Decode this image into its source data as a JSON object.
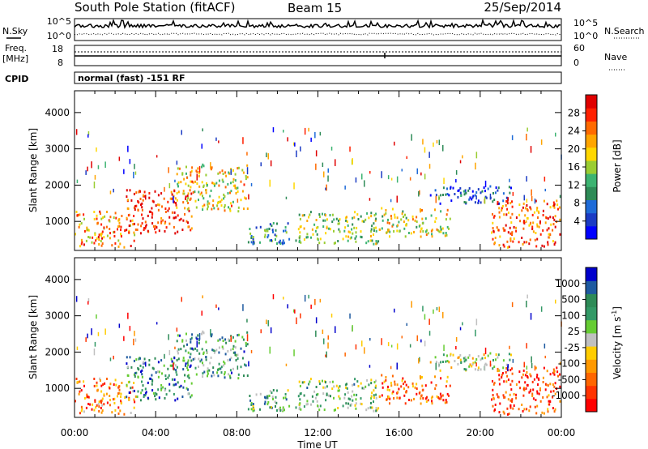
{
  "header": {
    "station": "South Pole Station (fitACF)",
    "beam": "Beam 15",
    "date": "25/Sep/2014"
  },
  "status_panels": {
    "noise_left_label": "N.Sky",
    "noise_right_label": "N.Search",
    "noise_left_ticks": [
      "10^5",
      "10^0"
    ],
    "noise_right_ticks": [
      "10^5",
      "10^0"
    ],
    "freq_label_1": "Freq.",
    "freq_label_2": "[MHz]",
    "freq_ticks": [
      "18",
      "8"
    ],
    "nave_label": "Nave",
    "nave_ticks": [
      "60",
      "0"
    ],
    "cpid_label": "CPID",
    "cpid_value": "normal (fast) -151 RF"
  },
  "chart_data": [
    {
      "type": "heatmap",
      "name": "power",
      "ylabel": "Slant Range [km]",
      "yticks": [
        "1000",
        "2000",
        "3000",
        "4000"
      ],
      "ylim": [
        200,
        4600
      ],
      "xlim": [
        0,
        24
      ],
      "colorbar_label": "Power [dB]",
      "colorbar_ticks": [
        "28",
        "24",
        "20",
        "16",
        "12",
        "8",
        "4"
      ],
      "colorbar_colors": [
        "#0000ff",
        "#1b3bc4",
        "#1e6bd8",
        "#2e8b57",
        "#3cb371",
        "#9acd32",
        "#ffd700",
        "#ffa500",
        "#ff6a00",
        "#ff2000",
        "#e00000"
      ],
      "echo_regions": [
        {
          "t0": 0.0,
          "t1": 3.0,
          "r0": 300,
          "r1": 1300,
          "level": 0.7
        },
        {
          "t0": 2.5,
          "t1": 5.8,
          "r0": 700,
          "r1": 1900,
          "level": 0.9
        },
        {
          "t0": 5.0,
          "t1": 8.5,
          "r0": 1300,
          "r1": 2600,
          "level": 0.6
        },
        {
          "t0": 8.5,
          "t1": 11.0,
          "r0": 400,
          "r1": 1000,
          "level": 0.3
        },
        {
          "t0": 11.0,
          "t1": 15.0,
          "r0": 400,
          "r1": 1300,
          "level": 0.5
        },
        {
          "t0": 15.0,
          "t1": 18.5,
          "r0": 600,
          "r1": 1400,
          "level": 0.55
        },
        {
          "t0": 17.5,
          "t1": 21.5,
          "r0": 1500,
          "r1": 2000,
          "level": 0.15
        },
        {
          "t0": 20.5,
          "t1": 24.0,
          "r0": 300,
          "r1": 1600,
          "level": 0.8
        }
      ]
    },
    {
      "type": "heatmap",
      "name": "velocity",
      "ylabel": "Slant Range [km]",
      "yticks": [
        "1000",
        "2000",
        "3000",
        "4000"
      ],
      "ylim": [
        200,
        4600
      ],
      "xlim": [
        0,
        24
      ],
      "xticks": [
        "00:00",
        "04:00",
        "08:00",
        "12:00",
        "16:00",
        "20:00",
        "00:00"
      ],
      "xlabel": "Time UT",
      "colorbar_label": "Velocity [m s-1]",
      "colorbar_label_main": "Velocity [m s",
      "colorbar_label_sup": "-1",
      "colorbar_label_end": "]",
      "colorbar_ticks": [
        "1000",
        "500",
        "100",
        "25",
        "-25",
        "-100",
        "-500",
        "-1000"
      ],
      "colorbar_colors": [
        "#ff0000",
        "#ff3300",
        "#ff6600",
        "#ff9900",
        "#ffcc00",
        "#c0c0c0",
        "#66cc33",
        "#339966",
        "#2e8b57",
        "#1e5aa0",
        "#0000cc"
      ],
      "echo_regions": [
        {
          "t0": 0.0,
          "t1": 3.0,
          "r0": 300,
          "r1": 1300,
          "level": 0.25
        },
        {
          "t0": 2.5,
          "t1": 5.8,
          "r0": 700,
          "r1": 1900,
          "level": 0.75
        },
        {
          "t0": 5.0,
          "t1": 8.5,
          "r0": 1300,
          "r1": 2600,
          "level": 0.7
        },
        {
          "t0": 8.5,
          "t1": 11.0,
          "r0": 400,
          "r1": 1000,
          "level": 0.65
        },
        {
          "t0": 11.0,
          "t1": 15.0,
          "r0": 400,
          "r1": 1300,
          "level": 0.6
        },
        {
          "t0": 15.0,
          "t1": 18.5,
          "r0": 600,
          "r1": 1400,
          "level": 0.2
        },
        {
          "t0": 17.5,
          "t1": 21.5,
          "r0": 1500,
          "r1": 2000,
          "level": 0.5
        },
        {
          "t0": 20.5,
          "t1": 24.0,
          "r0": 300,
          "r1": 1600,
          "level": 0.15
        }
      ]
    }
  ]
}
